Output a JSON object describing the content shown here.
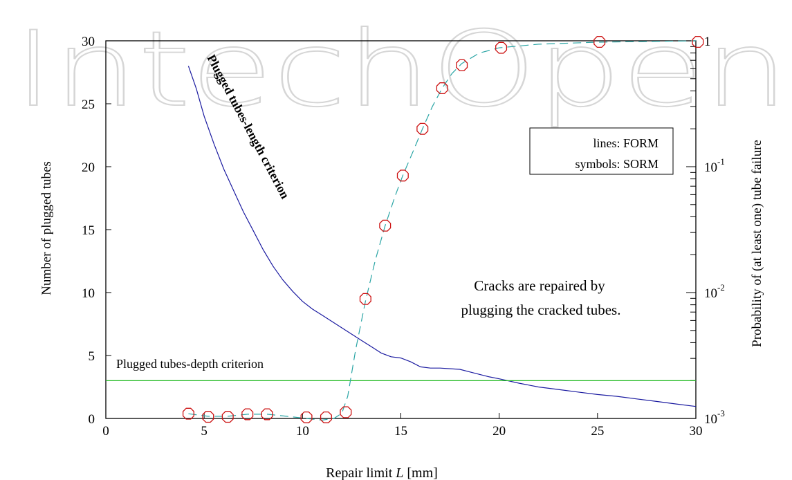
{
  "watermark": "IntechOpen",
  "chart_data": {
    "type": "line",
    "xlabel_prefix": "Repair limit ",
    "xlabel_var": "L",
    "xlabel_suffix": " [mm]",
    "ylabel": "Number of plugged tubes",
    "y2label": "Probability of (at least one) tube failure",
    "xlim": [
      0,
      30
    ],
    "ylim": [
      0,
      30
    ],
    "y2lim": [
      0.001,
      1
    ],
    "y2scale": "log",
    "xticks": [
      0,
      5,
      10,
      15,
      20,
      25,
      30
    ],
    "yticks": [
      0,
      5,
      10,
      15,
      20,
      25,
      30
    ],
    "y2ticks": [
      {
        "base": "10",
        "exp": "-3",
        "value": 0.001
      },
      {
        "base": "10",
        "exp": "-2",
        "value": 0.01
      },
      {
        "base": "10",
        "exp": "-1",
        "value": 0.1
      },
      {
        "base": "1",
        "exp": "",
        "value": 1
      }
    ],
    "legend_lines": [
      "lines: FORM",
      "symbols: SORM"
    ],
    "annotations": {
      "length_label": "Plugged tubes-length criterion",
      "depth_label": "Plugged tubes-depth criterion",
      "note_line1": "Cracks are repaired by",
      "note_line2": "plugging the cracked tubes."
    },
    "series": [
      {
        "axis": "left",
        "style": "solid",
        "color": "#1a1aa0",
        "x": [
          4.2,
          4.6,
          5,
          5.5,
          6,
          6.5,
          7,
          7.5,
          8,
          8.5,
          9,
          9.5,
          10,
          10.5,
          11,
          11.5,
          12,
          12.5,
          13,
          13.5,
          14,
          14.5,
          15,
          15.5,
          16,
          16.5,
          17,
          17.5,
          18,
          18.5,
          19,
          19.5,
          20,
          21,
          22,
          23,
          24,
          25,
          26,
          27,
          28,
          29,
          30
        ],
        "y": [
          28,
          26.2,
          24,
          21.8,
          19.8,
          18.1,
          16.4,
          14.9,
          13.4,
          12.1,
          11.0,
          10.1,
          9.3,
          8.7,
          8.2,
          7.7,
          7.2,
          6.7,
          6.2,
          5.7,
          5.2,
          4.9,
          4.8,
          4.5,
          4.1,
          4.0,
          4.0,
          3.95,
          3.9,
          3.7,
          3.5,
          3.3,
          3.15,
          2.8,
          2.5,
          2.3,
          2.1,
          1.9,
          1.75,
          1.55,
          1.35,
          1.15,
          0.95
        ]
      },
      {
        "axis": "left",
        "style": "solid",
        "color": "#22bb22",
        "x": [
          0,
          30
        ],
        "y": [
          3,
          3
        ]
      },
      {
        "axis": "right",
        "style": "dashed",
        "color": "#2aa5a5",
        "x": [
          4.2,
          5.2,
          6.2,
          7.2,
          8.2,
          9.2,
          10.2,
          11.0,
          11.6,
          12.0,
          12.3,
          12.7,
          13.2,
          13.7,
          14.2,
          14.7,
          15.1,
          15.6,
          16.1,
          16.6,
          17.1,
          17.6,
          18.1,
          19,
          20,
          22,
          25,
          30
        ],
        "y": [
          0.00109,
          0.00104,
          0.00104,
          0.00108,
          0.00108,
          0.00104,
          0.001,
          0.00097,
          0.001,
          0.0011,
          0.0015,
          0.0035,
          0.0085,
          0.018,
          0.034,
          0.058,
          0.085,
          0.13,
          0.2,
          0.3,
          0.42,
          0.55,
          0.66,
          0.8,
          0.88,
          0.94,
          0.975,
          1.0
        ]
      },
      {
        "axis": "right",
        "style": "markers",
        "color": "#cc1111",
        "x": [
          4.2,
          5.2,
          6.2,
          7.2,
          8.2,
          10.2,
          11.2,
          12.2,
          13.2,
          14.2,
          15.1,
          16.1,
          17.1,
          18.1,
          20.1,
          25.1,
          30.1
        ],
        "y": [
          0.00109,
          0.00103,
          0.00103,
          0.00108,
          0.00108,
          0.00102,
          0.00102,
          0.00112,
          0.0089,
          0.034,
          0.085,
          0.2,
          0.42,
          0.64,
          0.88,
          0.98,
          0.98
        ]
      }
    ]
  }
}
